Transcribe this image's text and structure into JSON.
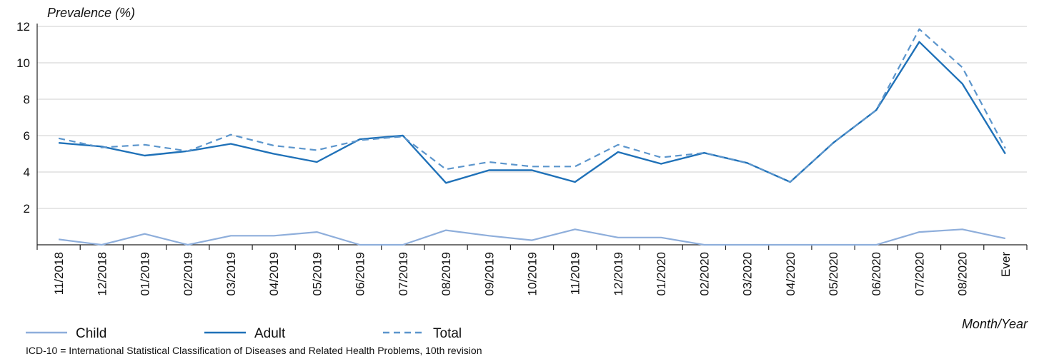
{
  "chart_data": {
    "type": "line",
    "ylabel": "Prevalence (%)",
    "xlabel": "Month/Year",
    "ylim": [
      0,
      12
    ],
    "yticks": [
      2,
      4,
      6,
      8,
      10,
      12
    ],
    "grid": true,
    "legend_position": "bottom-left",
    "categories": [
      "11/2018",
      "12/2018",
      "01/2019",
      "02/2019",
      "03/2019",
      "04/2019",
      "05/2019",
      "06/2019",
      "07/2019",
      "08/2019",
      "09/2019",
      "10/2019",
      "11/2019",
      "12/2019",
      "01/2020",
      "02/2020",
      "03/2020",
      "04/2020",
      "05/2020",
      "06/2020",
      "07/2020",
      "08/2020",
      "Ever"
    ],
    "series": [
      {
        "name": "Child",
        "color": "#8eaedb",
        "dash": "solid",
        "values": [
          0.3,
          0.0,
          0.6,
          0.0,
          0.5,
          0.5,
          0.7,
          0.0,
          0.0,
          0.8,
          0.5,
          0.25,
          0.85,
          0.4,
          0.4,
          0.0,
          0.0,
          0.0,
          0.0,
          0.0,
          0.7,
          0.85,
          0.35
        ]
      },
      {
        "name": "Adult",
        "color": "#1f71b8",
        "dash": "solid",
        "values": [
          5.6,
          5.4,
          4.9,
          5.15,
          5.55,
          5.0,
          4.55,
          5.8,
          6.0,
          3.4,
          4.1,
          4.1,
          3.45,
          5.1,
          4.45,
          5.05,
          4.5,
          3.45,
          5.6,
          7.4,
          11.15,
          8.85,
          5.0
        ]
      },
      {
        "name": "Total",
        "color": "#5b95cc",
        "dash": "dashed",
        "values": [
          5.85,
          5.35,
          5.5,
          5.15,
          6.05,
          5.45,
          5.2,
          5.75,
          5.95,
          4.15,
          4.55,
          4.3,
          4.3,
          5.5,
          4.8,
          5.05,
          4.5,
          3.45,
          5.6,
          7.4,
          11.85,
          9.75,
          5.3
        ]
      }
    ]
  },
  "footnote": "ICD-10 = International Statistical Classification of Diseases and Related Health Problems, 10th revision"
}
